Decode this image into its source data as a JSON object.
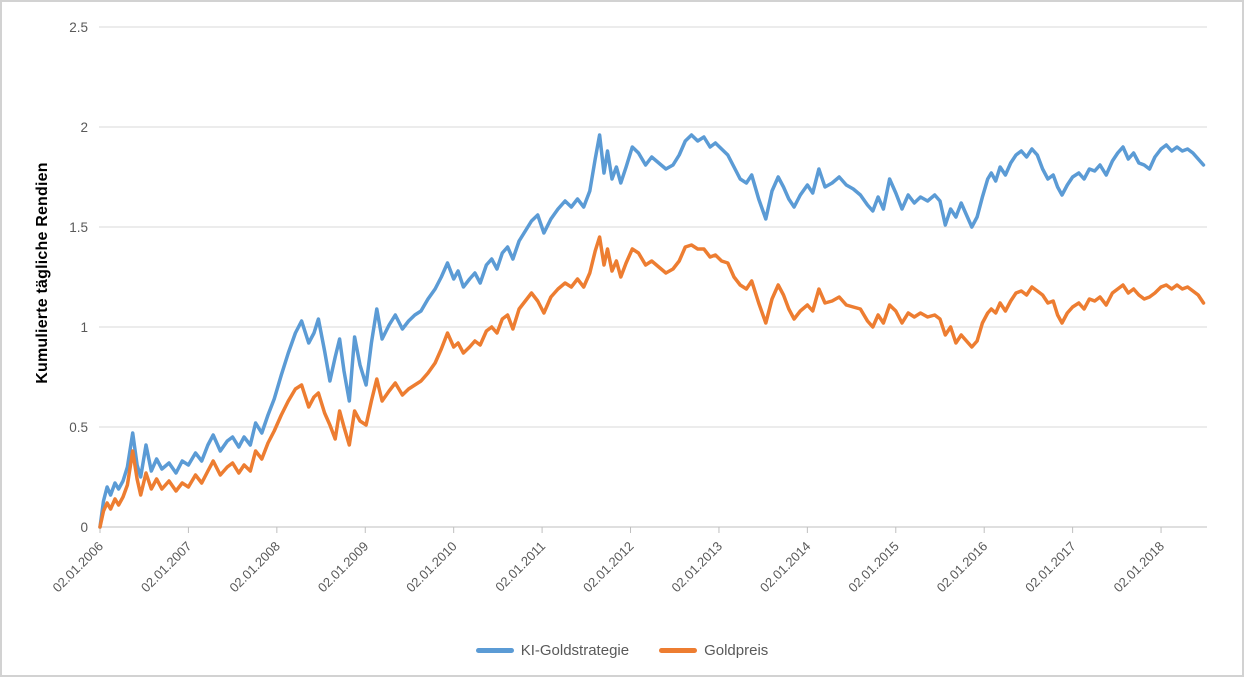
{
  "chart": {
    "ylabel": "Kumulierte tägliche Rendien",
    "colors": {
      "series_ki": "#5B9BD5",
      "series_gold": "#ED7D31",
      "gridline": "#D9D9D9",
      "axis_line": "#BFBFBF",
      "tick_text": "#595959",
      "ytitle_text": "#000000"
    }
  },
  "chart_data": {
    "type": "line",
    "title": "",
    "xlabel": "",
    "ylabel": "Kumulierte tägliche Rendien",
    "grid": "horizontal",
    "legend_position": "bottom-center",
    "x_unit": "decimal_year",
    "xlim": [
      2006.0,
      2018.55
    ],
    "ylim": [
      0,
      2.5
    ],
    "y_ticks": [
      0,
      0.5,
      1,
      1.5,
      2,
      2.5
    ],
    "y_tick_labels": [
      "0",
      "0.5",
      "1",
      "1.5",
      "2",
      "2.5"
    ],
    "x_tick_years": [
      2006,
      2007,
      2008,
      2009,
      2010,
      2011,
      2012,
      2013,
      2014,
      2015,
      2016,
      2017,
      2018
    ],
    "x_tick_labels": [
      "02.01.2006",
      "02.01.2007",
      "02.01.2008",
      "02.01.2009",
      "02.01.2010",
      "02.01.2011",
      "02.01.2012",
      "02.01.2013",
      "02.01.2014",
      "02.01.2015",
      "02.01.2016",
      "02.01.2017",
      "02.01.2018"
    ],
    "x": [
      2006.0,
      2006.04,
      2006.08,
      2006.12,
      2006.17,
      2006.21,
      2006.26,
      2006.31,
      2006.37,
      2006.42,
      2006.46,
      2006.52,
      2006.58,
      2006.64,
      2006.7,
      2006.78,
      2006.86,
      2006.93,
      2007.0,
      2007.08,
      2007.15,
      2007.22,
      2007.28,
      2007.36,
      2007.44,
      2007.5,
      2007.57,
      2007.63,
      2007.7,
      2007.76,
      2007.83,
      2007.9,
      2007.97,
      2008.05,
      2008.13,
      2008.21,
      2008.28,
      2008.36,
      2008.42,
      2008.47,
      2008.54,
      2008.6,
      2008.66,
      2008.71,
      2008.76,
      2008.82,
      2008.88,
      2008.94,
      2009.01,
      2009.07,
      2009.13,
      2009.19,
      2009.27,
      2009.34,
      2009.42,
      2009.49,
      2009.56,
      2009.63,
      2009.71,
      2009.79,
      2009.86,
      2009.93,
      2010.0,
      2010.05,
      2010.11,
      2010.18,
      2010.24,
      2010.3,
      2010.37,
      2010.43,
      2010.49,
      2010.55,
      2010.61,
      2010.67,
      2010.74,
      2010.81,
      2010.88,
      2010.95,
      2011.02,
      2011.1,
      2011.18,
      2011.26,
      2011.33,
      2011.4,
      2011.47,
      2011.54,
      2011.6,
      2011.65,
      2011.7,
      2011.74,
      2011.79,
      2011.84,
      2011.89,
      2011.95,
      2012.02,
      2012.09,
      2012.17,
      2012.24,
      2012.32,
      2012.4,
      2012.48,
      2012.55,
      2012.62,
      2012.69,
      2012.76,
      2012.83,
      2012.9,
      2012.96,
      2013.03,
      2013.1,
      2013.17,
      2013.24,
      2013.31,
      2013.37,
      2013.45,
      2013.53,
      2013.6,
      2013.67,
      2013.73,
      2013.79,
      2013.85,
      2013.92,
      2014.0,
      2014.06,
      2014.13,
      2014.2,
      2014.28,
      2014.36,
      2014.44,
      2014.52,
      2014.6,
      2014.68,
      2014.74,
      2014.8,
      2014.86,
      2014.93,
      2015.0,
      2015.07,
      2015.14,
      2015.21,
      2015.28,
      2015.36,
      2015.44,
      2015.5,
      2015.56,
      2015.62,
      2015.68,
      2015.74,
      2015.8,
      2015.86,
      2015.92,
      2015.98,
      2016.04,
      2016.08,
      2016.13,
      2016.18,
      2016.24,
      2016.3,
      2016.36,
      2016.42,
      2016.48,
      2016.54,
      2016.6,
      2016.66,
      2016.72,
      2016.78,
      2016.83,
      2016.88,
      2016.94,
      2017.0,
      2017.07,
      2017.13,
      2017.19,
      2017.25,
      2017.31,
      2017.38,
      2017.45,
      2017.51,
      2017.57,
      2017.63,
      2017.69,
      2017.75,
      2017.81,
      2017.87,
      2017.93,
      2018.0,
      2018.06,
      2018.12,
      2018.18,
      2018.24,
      2018.3,
      2018.36,
      2018.42,
      2018.48
    ],
    "series": [
      {
        "name": "KI-Goldstrategie",
        "color": "#5B9BD5",
        "values": [
          0.0,
          0.13,
          0.2,
          0.16,
          0.22,
          0.19,
          0.23,
          0.3,
          0.47,
          0.31,
          0.25,
          0.41,
          0.28,
          0.34,
          0.29,
          0.32,
          0.27,
          0.33,
          0.31,
          0.37,
          0.33,
          0.41,
          0.46,
          0.38,
          0.43,
          0.45,
          0.4,
          0.45,
          0.41,
          0.52,
          0.47,
          0.56,
          0.64,
          0.76,
          0.87,
          0.97,
          1.03,
          0.92,
          0.97,
          1.04,
          0.88,
          0.73,
          0.85,
          0.94,
          0.78,
          0.63,
          0.95,
          0.81,
          0.71,
          0.92,
          1.09,
          0.94,
          1.01,
          1.06,
          0.99,
          1.03,
          1.06,
          1.08,
          1.14,
          1.19,
          1.25,
          1.32,
          1.24,
          1.28,
          1.2,
          1.24,
          1.27,
          1.22,
          1.31,
          1.34,
          1.29,
          1.37,
          1.4,
          1.34,
          1.43,
          1.48,
          1.53,
          1.56,
          1.47,
          1.54,
          1.59,
          1.63,
          1.6,
          1.64,
          1.6,
          1.68,
          1.84,
          1.96,
          1.77,
          1.88,
          1.74,
          1.8,
          1.72,
          1.8,
          1.9,
          1.87,
          1.81,
          1.85,
          1.82,
          1.79,
          1.81,
          1.86,
          1.93,
          1.96,
          1.93,
          1.95,
          1.9,
          1.92,
          1.89,
          1.86,
          1.8,
          1.74,
          1.72,
          1.76,
          1.64,
          1.54,
          1.68,
          1.75,
          1.7,
          1.64,
          1.6,
          1.66,
          1.71,
          1.67,
          1.79,
          1.7,
          1.72,
          1.75,
          1.71,
          1.69,
          1.66,
          1.61,
          1.58,
          1.65,
          1.59,
          1.74,
          1.67,
          1.59,
          1.66,
          1.62,
          1.65,
          1.63,
          1.66,
          1.63,
          1.51,
          1.59,
          1.55,
          1.62,
          1.56,
          1.5,
          1.55,
          1.65,
          1.74,
          1.77,
          1.73,
          1.8,
          1.76,
          1.82,
          1.86,
          1.88,
          1.85,
          1.89,
          1.86,
          1.79,
          1.74,
          1.76,
          1.7,
          1.66,
          1.71,
          1.75,
          1.77,
          1.74,
          1.79,
          1.78,
          1.81,
          1.76,
          1.83,
          1.87,
          1.9,
          1.84,
          1.87,
          1.82,
          1.81,
          1.79,
          1.85,
          1.89,
          1.91,
          1.88,
          1.9,
          1.88,
          1.89,
          1.87,
          1.84,
          1.81
        ]
      },
      {
        "name": "Goldpreis",
        "color": "#ED7D31",
        "values": [
          0.0,
          0.08,
          0.12,
          0.09,
          0.14,
          0.11,
          0.15,
          0.21,
          0.38,
          0.24,
          0.16,
          0.27,
          0.19,
          0.24,
          0.19,
          0.23,
          0.18,
          0.22,
          0.2,
          0.26,
          0.22,
          0.28,
          0.33,
          0.26,
          0.3,
          0.32,
          0.27,
          0.31,
          0.28,
          0.38,
          0.34,
          0.42,
          0.48,
          0.56,
          0.63,
          0.69,
          0.71,
          0.6,
          0.65,
          0.67,
          0.57,
          0.51,
          0.44,
          0.58,
          0.5,
          0.41,
          0.58,
          0.53,
          0.51,
          0.63,
          0.74,
          0.63,
          0.68,
          0.72,
          0.66,
          0.69,
          0.71,
          0.73,
          0.77,
          0.82,
          0.89,
          0.97,
          0.9,
          0.92,
          0.87,
          0.9,
          0.93,
          0.91,
          0.98,
          1.0,
          0.97,
          1.04,
          1.06,
          0.99,
          1.09,
          1.13,
          1.17,
          1.13,
          1.07,
          1.15,
          1.19,
          1.22,
          1.2,
          1.24,
          1.2,
          1.27,
          1.38,
          1.45,
          1.31,
          1.39,
          1.28,
          1.33,
          1.25,
          1.32,
          1.39,
          1.37,
          1.31,
          1.33,
          1.3,
          1.27,
          1.29,
          1.33,
          1.4,
          1.41,
          1.39,
          1.39,
          1.35,
          1.36,
          1.33,
          1.32,
          1.25,
          1.21,
          1.19,
          1.23,
          1.12,
          1.02,
          1.14,
          1.21,
          1.16,
          1.09,
          1.04,
          1.08,
          1.11,
          1.08,
          1.19,
          1.12,
          1.13,
          1.15,
          1.11,
          1.1,
          1.09,
          1.03,
          1.0,
          1.06,
          1.02,
          1.11,
          1.08,
          1.02,
          1.07,
          1.05,
          1.07,
          1.05,
          1.06,
          1.04,
          0.96,
          1.0,
          0.92,
          0.96,
          0.93,
          0.9,
          0.93,
          1.02,
          1.07,
          1.09,
          1.07,
          1.12,
          1.08,
          1.13,
          1.17,
          1.18,
          1.16,
          1.2,
          1.18,
          1.16,
          1.12,
          1.13,
          1.06,
          1.02,
          1.07,
          1.1,
          1.12,
          1.09,
          1.14,
          1.13,
          1.15,
          1.11,
          1.17,
          1.19,
          1.21,
          1.17,
          1.19,
          1.16,
          1.14,
          1.15,
          1.17,
          1.2,
          1.21,
          1.19,
          1.21,
          1.19,
          1.2,
          1.18,
          1.16,
          1.12
        ]
      }
    ]
  }
}
